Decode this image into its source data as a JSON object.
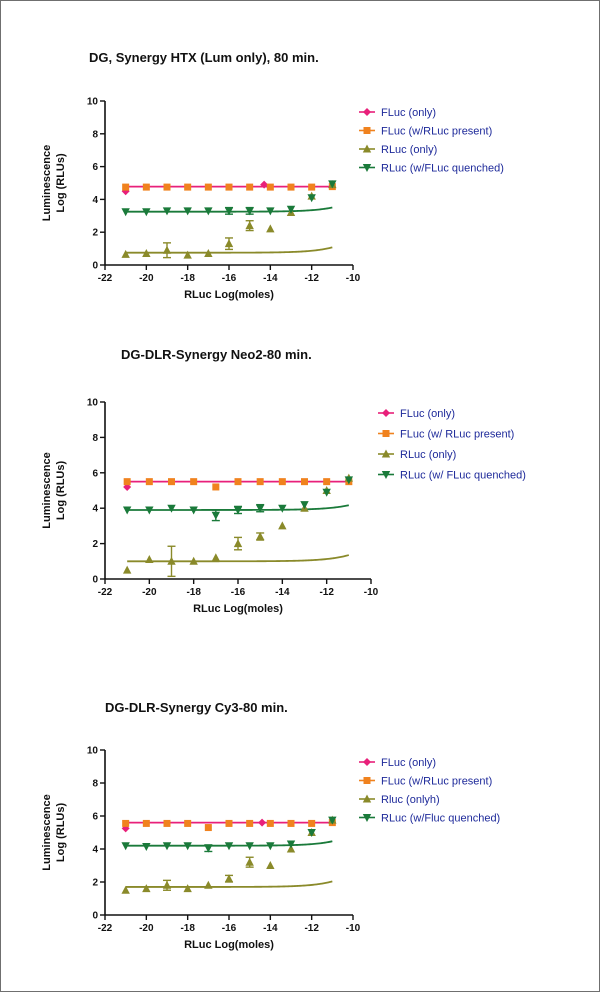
{
  "chart_data": [
    {
      "type": "scatter",
      "title": "DG, Synergy HTX (Lum only), 80 min.",
      "xlabel": "RLuc Log(moles)",
      "ylabel": [
        "Luminescence",
        "Log (RLUs)"
      ],
      "xlim": [
        -22,
        -10
      ],
      "ylim": [
        0,
        10
      ],
      "xticks": [
        -22,
        -20,
        -18,
        -16,
        -14,
        -12,
        -10
      ],
      "yticks": [
        0,
        2,
        4,
        6,
        8,
        10
      ],
      "legend_position": "right",
      "series": [
        {
          "name": "FLuc (only)",
          "color": "#e8207a",
          "marker": "diamond",
          "x": [
            -21,
            -14.3
          ],
          "y": [
            4.5,
            4.9
          ],
          "fit": {
            "type": "flat",
            "value": 4.78
          }
        },
        {
          "name": "FLuc (w/RLuc present)",
          "color": "#f0821e",
          "marker": "square",
          "x": [
            -21,
            -20,
            -19,
            -18,
            -17,
            -16,
            -15,
            -14,
            -13,
            -12,
            -11
          ],
          "y": [
            4.75,
            4.75,
            4.75,
            4.75,
            4.75,
            4.75,
            4.75,
            4.75,
            4.75,
            4.75,
            4.78
          ]
        },
        {
          "name": "RLuc (only)",
          "color": "#8a8a2a",
          "marker": "triangle-up",
          "x": [
            -21,
            -20,
            -19,
            -18,
            -17,
            -16,
            -15,
            -14,
            -13,
            -12,
            -11
          ],
          "y": [
            0.65,
            0.7,
            0.9,
            0.6,
            0.7,
            1.3,
            2.4,
            2.2,
            3.2,
            4.2,
            4.9
          ],
          "err": [
            0,
            0,
            0.45,
            0,
            0,
            0.35,
            0.3,
            0,
            0,
            0,
            0
          ],
          "fit": {
            "type": "sigmoid",
            "bottom": 0.75,
            "top": 12.2,
            "logec50": -7.6,
            "hill": 0.45
          }
        },
        {
          "name": "RLuc (w/FLuc quenched)",
          "color": "#1a7a3a",
          "marker": "triangle-down",
          "x": [
            -21,
            -20,
            -19,
            -18,
            -17,
            -16,
            -15,
            -14,
            -13,
            -12,
            -11
          ],
          "y": [
            3.25,
            3.25,
            3.3,
            3.3,
            3.3,
            3.3,
            3.3,
            3.3,
            3.4,
            4.1,
            4.95
          ],
          "err": [
            0,
            0,
            0,
            0,
            0,
            0.2,
            0.2,
            0,
            0,
            0,
            0
          ],
          "fit": {
            "type": "sigmoid",
            "bottom": 3.25,
            "top": 12.2,
            "logec50": -7.6,
            "hill": 0.45
          }
        }
      ]
    },
    {
      "type": "scatter",
      "title": "DG-DLR-Synergy Neo2-80 min.",
      "xlabel": "RLuc Log(moles)",
      "ylabel": [
        "Luminescence",
        "Log (RLUs)"
      ],
      "xlim": [
        -22,
        -10
      ],
      "ylim": [
        0,
        10
      ],
      "xticks": [
        -22,
        -20,
        -18,
        -16,
        -14,
        -12,
        -10
      ],
      "yticks": [
        0,
        2,
        4,
        6,
        8,
        10
      ],
      "legend_position": "right",
      "series": [
        {
          "name": "FLuc (only)",
          "color": "#e8207a",
          "marker": "diamond",
          "x": [
            -21
          ],
          "y": [
            5.2
          ],
          "fit": {
            "type": "flat",
            "value": 5.5
          }
        },
        {
          "name": "FLuc (w/ RLuc present)",
          "color": "#f0821e",
          "marker": "square",
          "x": [
            -21,
            -20,
            -19,
            -18,
            -17,
            -16,
            -15,
            -14,
            -13,
            -12,
            -11
          ],
          "y": [
            5.5,
            5.5,
            5.5,
            5.5,
            5.2,
            5.5,
            5.5,
            5.5,
            5.5,
            5.5,
            5.5
          ]
        },
        {
          "name": "RLuc (only)",
          "color": "#8a8a2a",
          "marker": "triangle-up",
          "x": [
            -21,
            -20,
            -19,
            -18,
            -17,
            -16,
            -15,
            -14,
            -13,
            -12,
            -11
          ],
          "y": [
            0.5,
            1.1,
            1.0,
            1.0,
            1.2,
            2.0,
            2.4,
            3.0,
            4.0,
            5.0,
            5.7
          ],
          "err": [
            0,
            0,
            0.85,
            0,
            0,
            0.35,
            0.2,
            0,
            0,
            0,
            0
          ],
          "fit": {
            "type": "sigmoid",
            "bottom": 1.0,
            "top": 13.3,
            "logec50": -7.6,
            "hill": 0.45
          }
        },
        {
          "name": "RLuc (w/ FLuc quenched)",
          "color": "#1a7a3a",
          "marker": "triangle-down",
          "x": [
            -21,
            -20,
            -19,
            -18,
            -17,
            -16,
            -15,
            -14,
            -13,
            -12,
            -11
          ],
          "y": [
            3.9,
            3.9,
            4.0,
            3.9,
            3.6,
            3.9,
            4.0,
            4.0,
            4.2,
            4.9,
            5.6
          ],
          "err": [
            0,
            0,
            0,
            0,
            0.3,
            0.2,
            0.2,
            0,
            0,
            0,
            0
          ],
          "fit": {
            "type": "sigmoid",
            "bottom": 3.9,
            "top": 13.3,
            "logec50": -7.6,
            "hill": 0.45
          }
        }
      ]
    },
    {
      "type": "scatter",
      "title": "DG-DLR-Synergy Cy3-80 min.",
      "xlabel": "RLuc Log(moles)",
      "ylabel": [
        "Luminescence",
        "Log (RLUs)"
      ],
      "xlim": [
        -22,
        -10
      ],
      "ylim": [
        0,
        10
      ],
      "xticks": [
        -22,
        -20,
        -18,
        -16,
        -14,
        -12,
        -10
      ],
      "yticks": [
        0,
        2,
        4,
        6,
        8,
        10
      ],
      "legend_position": "right",
      "series": [
        {
          "name": "FLuc (only)",
          "color": "#e8207a",
          "marker": "diamond",
          "x": [
            -21,
            -14.4
          ],
          "y": [
            5.25,
            5.6
          ],
          "fit": {
            "type": "flat",
            "value": 5.6
          }
        },
        {
          "name": "FLuc (w/RLuc present)",
          "color": "#f0821e",
          "marker": "square",
          "x": [
            -21,
            -20,
            -19,
            -18,
            -17,
            -16,
            -15,
            -14,
            -13,
            -12,
            -11
          ],
          "y": [
            5.55,
            5.55,
            5.55,
            5.55,
            5.3,
            5.55,
            5.55,
            5.55,
            5.55,
            5.55,
            5.6
          ]
        },
        {
          "name": "Rluc (onlyh)",
          "color": "#8a8a2a",
          "marker": "triangle-up",
          "x": [
            -21,
            -20,
            -19,
            -18,
            -17,
            -16,
            -15,
            -14,
            -13,
            -12,
            -11
          ],
          "y": [
            1.5,
            1.6,
            1.8,
            1.6,
            1.8,
            2.2,
            3.2,
            3.0,
            4.0,
            5.0,
            5.75
          ],
          "err": [
            0,
            0,
            0.3,
            0,
            0,
            0.2,
            0.3,
            0,
            0,
            0,
            0
          ],
          "fit": {
            "type": "sigmoid",
            "bottom": 1.7,
            "top": 13.5,
            "logec50": -7.6,
            "hill": 0.45
          }
        },
        {
          "name": "RLuc (w/Fluc quenched)",
          "color": "#1a7a3a",
          "marker": "triangle-down",
          "x": [
            -21,
            -20,
            -19,
            -18,
            -17,
            -16,
            -15,
            -14,
            -13,
            -12,
            -11
          ],
          "y": [
            4.2,
            4.15,
            4.2,
            4.2,
            4.05,
            4.2,
            4.2,
            4.2,
            4.3,
            5.0,
            5.75
          ],
          "err": [
            0,
            0,
            0,
            0,
            0.2,
            0,
            0,
            0,
            0,
            0,
            0
          ],
          "fit": {
            "type": "sigmoid",
            "bottom": 4.2,
            "top": 13.5,
            "logec50": -7.6,
            "hill": 0.45
          }
        }
      ]
    }
  ]
}
